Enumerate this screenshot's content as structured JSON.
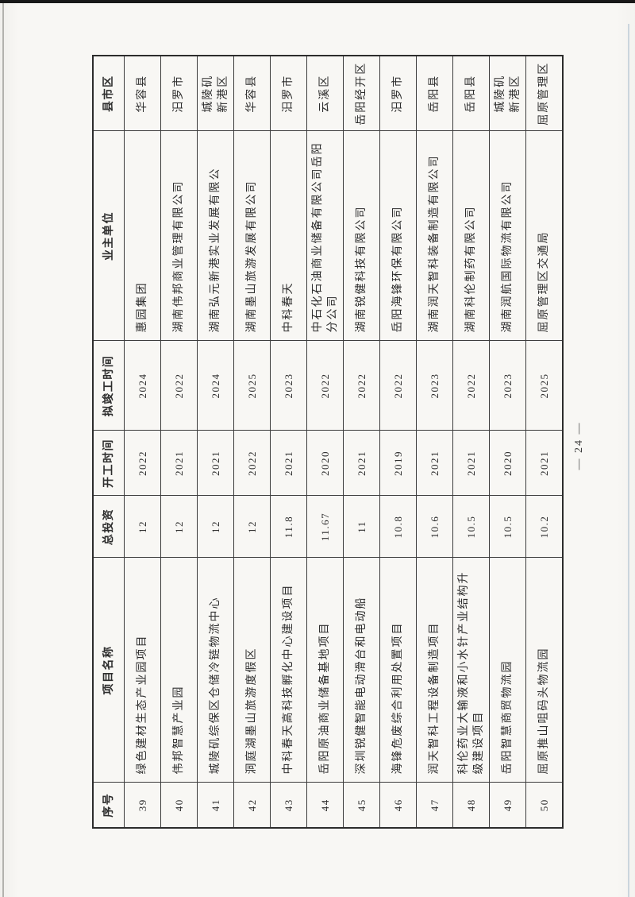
{
  "page": {
    "number_label": "— 24 —",
    "paper_color": "#f8f7f4",
    "ink_color": "#2e2e2e",
    "scan_edge_top_color": "#181818",
    "scan_edge_right_color": "#c7d1da"
  },
  "table": {
    "headers": {
      "no": "序号",
      "name": "项目名称",
      "investment": "总投资",
      "start": "开工时间",
      "finish": "拟竣工时间",
      "owner": "业主单位",
      "district": "县市区"
    },
    "column_keys": [
      "no",
      "name",
      "investment",
      "start",
      "finish",
      "owner",
      "district"
    ],
    "rows": [
      {
        "no": "39",
        "name": "绿色建材生态产业园项目",
        "investment": "12",
        "start": "2022",
        "finish": "2024",
        "owner": "惠园集团",
        "district": "华容县"
      },
      {
        "no": "40",
        "name": "伟邦智慧产业园",
        "investment": "12",
        "start": "2021",
        "finish": "2022",
        "owner": "湖南伟邦商业管理有限公司",
        "district": "汨罗市"
      },
      {
        "no": "41",
        "name": "城陵矶综保区仓储冷链物流中心",
        "investment": "12",
        "start": "2021",
        "finish": "2024",
        "owner": "湖南弘元新港实业发展有限公",
        "district": "城陵矶\n新港区"
      },
      {
        "no": "42",
        "name": "洞庭湖墨山旅游度假区",
        "investment": "12",
        "start": "2022",
        "finish": "2025",
        "owner": "湖南墨山旅游发展有限公司",
        "district": "华容县"
      },
      {
        "no": "43",
        "name": "中科春天高科技孵化中心建设项目",
        "investment": "11.8",
        "start": "2021",
        "finish": "2023",
        "owner": "中科春天",
        "district": "汨罗市"
      },
      {
        "no": "44",
        "name": "岳阳原油商业储备基地项目",
        "investment": "11.67",
        "start": "2020",
        "finish": "2022",
        "owner": "中石化石油商业储备有限公司岳阳\n分公司",
        "district": "云溪区"
      },
      {
        "no": "45",
        "name": "深圳锐健智能电动滑台和电动船",
        "investment": "11",
        "start": "2021",
        "finish": "2022",
        "owner": "湖南锐健科技有限公司",
        "district": "岳阳经开区"
      },
      {
        "no": "46",
        "name": "海锋危废综合利用处置项目",
        "investment": "10.8",
        "start": "2019",
        "finish": "2022",
        "owner": "岳阳海锋环保有限公司",
        "district": "汨罗市"
      },
      {
        "no": "47",
        "name": "润天智科工程设备制造项目",
        "investment": "10.6",
        "start": "2021",
        "finish": "2023",
        "owner": "湖南润天智科装备制造有限公司",
        "district": "岳阳县"
      },
      {
        "no": "48",
        "name": "科伦药业大输液和小水针产业结构升\n级建设项目",
        "investment": "10.5",
        "start": "2021",
        "finish": "2022",
        "owner": "湖南科伦制药有限公司",
        "district": "岳阳县"
      },
      {
        "no": "49",
        "name": "岳阳智慧商贸物流园",
        "investment": "10.5",
        "start": "2020",
        "finish": "2023",
        "owner": "湖南润航国际物流有限公司",
        "district": "城陵矶\n新港区"
      },
      {
        "no": "50",
        "name": "屈原推山咀码头物流园",
        "investment": "10.2",
        "start": "2021",
        "finish": "2025",
        "owner": "屈原管理区交通局",
        "district": "屈原管理区"
      }
    ]
  }
}
